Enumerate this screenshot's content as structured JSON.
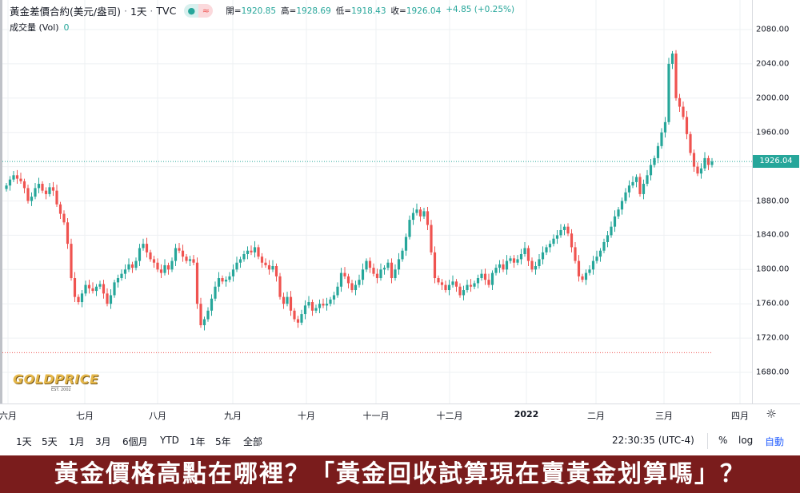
{
  "legend": {
    "symbol": "黃金差價合約(美元/盎司)",
    "interval": "1天",
    "source": "TVC",
    "dot_icon": "●",
    "wave_icon": "≈",
    "open_label": "開=",
    "open": "1920.85",
    "high_label": "高=",
    "high": "1928.69",
    "low_label": "低=",
    "low": "1918.43",
    "close_label": "收=",
    "close": "1926.04",
    "change": "+4.85 (+0.25%)"
  },
  "volume": {
    "label": "成交量 (Vol)",
    "value": "0"
  },
  "logo": {
    "text": "GOLDPRICE",
    "sub": "EST. 2002"
  },
  "price_axis": {
    "ticks": [
      "2080.00",
      "2040.00",
      "2000.00",
      "1960.00",
      "1926.04",
      "1880.00",
      "1840.00",
      "1800.00",
      "1760.00",
      "1720.00",
      "1680.00"
    ],
    "last_price": "1926.04"
  },
  "time_axis": {
    "labels": [
      "六月",
      "七月",
      "八月",
      "九月",
      "十月",
      "十一月",
      "十二月",
      "2022",
      "二月",
      "三月",
      "四月"
    ]
  },
  "toolbar": {
    "timeframes": [
      "1天",
      "5天",
      "1月",
      "3月",
      "6個月",
      "YTD",
      "1年",
      "5年",
      "全部"
    ],
    "clock": "22:30:35 (UTC-4)",
    "percent": "%",
    "log": "log",
    "auto": "自動"
  },
  "caption": "黃金價格高點在哪裡？「黃金回收試算現在賣黃金划算嗎」？",
  "colors": {
    "up": "#26a69a",
    "down": "#ef5350",
    "caption_bg": "#7a1c1c"
  },
  "chart_data": {
    "type": "candlestick",
    "ylim": [
      1660,
      2100
    ],
    "reference_levels": [
      1926.04,
      1703
    ],
    "months": [
      "六月",
      "七月",
      "八月",
      "九月",
      "十月",
      "十一月",
      "十二月",
      "2022",
      "二月",
      "三月",
      "四月"
    ],
    "close": [
      1898,
      1905,
      1910,
      1906,
      1903,
      1895,
      1880,
      1885,
      1895,
      1900,
      1892,
      1888,
      1896,
      1892,
      1876,
      1865,
      1855,
      1830,
      1790,
      1768,
      1762,
      1772,
      1782,
      1778,
      1775,
      1780,
      1783,
      1772,
      1760,
      1770,
      1785,
      1790,
      1795,
      1800,
      1806,
      1802,
      1810,
      1825,
      1830,
      1820,
      1812,
      1808,
      1800,
      1796,
      1805,
      1800,
      1810,
      1825,
      1822,
      1815,
      1810,
      1812,
      1808,
      1760,
      1735,
      1742,
      1752,
      1766,
      1780,
      1790,
      1786,
      1788,
      1792,
      1800,
      1808,
      1812,
      1818,
      1822,
      1820,
      1826,
      1815,
      1808,
      1805,
      1800,
      1804,
      1792,
      1768,
      1760,
      1768,
      1752,
      1742,
      1738,
      1748,
      1758,
      1762,
      1752,
      1755,
      1760,
      1758,
      1760,
      1765,
      1770,
      1780,
      1796,
      1792,
      1784,
      1776,
      1782,
      1788,
      1800,
      1810,
      1802,
      1795,
      1790,
      1800,
      1802,
      1808,
      1790,
      1800,
      1812,
      1822,
      1838,
      1858,
      1866,
      1870,
      1862,
      1868,
      1852,
      1820,
      1790,
      1785,
      1782,
      1776,
      1782,
      1786,
      1780,
      1770,
      1776,
      1782,
      1780,
      1784,
      1790,
      1795,
      1788,
      1782,
      1796,
      1802,
      1806,
      1800,
      1810,
      1813,
      1808,
      1812,
      1818,
      1825,
      1810,
      1800,
      1804,
      1812,
      1820,
      1826,
      1830,
      1836,
      1840,
      1846,
      1850,
      1842,
      1826,
      1810,
      1792,
      1788,
      1796,
      1800,
      1810,
      1815,
      1822,
      1832,
      1840,
      1850,
      1862,
      1870,
      1880,
      1890,
      1898,
      1902,
      1908,
      1888,
      1900,
      1910,
      1922,
      1930,
      1944,
      1960,
      1972,
      2040,
      2052,
      2000,
      1990,
      1978,
      1958,
      1936,
      1920,
      1912,
      1918,
      1930,
      1922,
      1926
    ]
  }
}
